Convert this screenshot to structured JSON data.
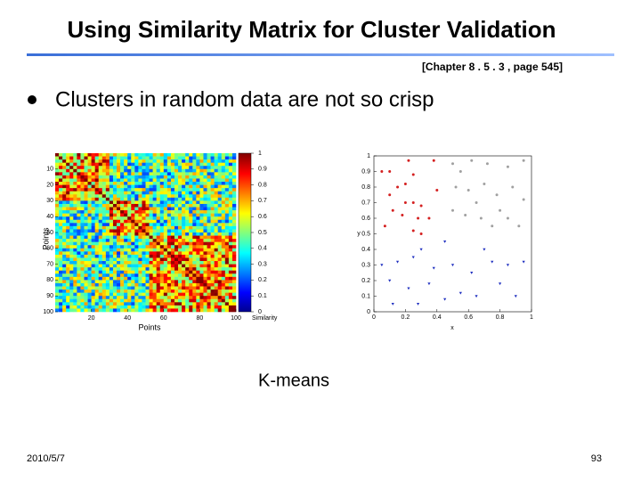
{
  "header": {
    "title": "Using Similarity Matrix for Cluster Validation",
    "reference": "[Chapter 8 . 5 . 3 ,  page 545]"
  },
  "bullet": "Clusters in random data are not so crisp",
  "similarity_matrix": {
    "x_label": "Points",
    "y_label": "Points",
    "xlim": [
      0,
      100
    ],
    "ylim": [
      0,
      100
    ],
    "xticks": [
      20,
      40,
      60,
      80,
      100
    ],
    "yticks": [
      10,
      20,
      30,
      40,
      50,
      60,
      70,
      80,
      90,
      100
    ],
    "colorbar_label": "Similarity",
    "colorbar_lim": [
      0,
      1
    ],
    "colorbar_ticks": [
      0,
      0.1,
      0.2,
      0.3,
      0.4,
      0.5,
      0.6,
      0.7,
      0.8,
      0.9,
      1
    ]
  },
  "chart_data": {
    "type": "scatter",
    "x_label": "x",
    "y_label": "y",
    "xlim": [
      0,
      1
    ],
    "ylim": [
      0,
      1
    ],
    "xticks": [
      0,
      0.2,
      0.4,
      0.6,
      0.8,
      1
    ],
    "yticks": [
      0,
      0.1,
      0.2,
      0.3,
      0.4,
      0.5,
      0.6,
      0.7,
      0.8,
      0.9,
      1
    ],
    "series": [
      {
        "color": "#d42020",
        "marker": "circle",
        "x": [
          0.05,
          0.1,
          0.22,
          0.38,
          0.25,
          0.2,
          0.15,
          0.1,
          0.2,
          0.25,
          0.3,
          0.12,
          0.18,
          0.28,
          0.35,
          0.07,
          0.3,
          0.25,
          0.4
        ],
        "values": [
          0.9,
          0.9,
          0.97,
          0.97,
          0.88,
          0.82,
          0.8,
          0.75,
          0.7,
          0.7,
          0.68,
          0.65,
          0.62,
          0.6,
          0.6,
          0.55,
          0.5,
          0.52,
          0.78
        ]
      },
      {
        "color": "#2030c0",
        "marker": "triangle",
        "x": [
          0.05,
          0.15,
          0.25,
          0.3,
          0.45,
          0.38,
          0.5,
          0.62,
          0.75,
          0.85,
          0.95,
          0.1,
          0.22,
          0.35,
          0.55,
          0.65,
          0.8,
          0.9,
          0.45,
          0.28,
          0.12,
          0.7
        ],
        "values": [
          0.3,
          0.32,
          0.35,
          0.4,
          0.45,
          0.28,
          0.3,
          0.25,
          0.32,
          0.3,
          0.32,
          0.2,
          0.15,
          0.18,
          0.12,
          0.1,
          0.18,
          0.1,
          0.08,
          0.05,
          0.05,
          0.4
        ]
      },
      {
        "color": "#a0a0a0",
        "marker": "circle",
        "x": [
          0.5,
          0.55,
          0.62,
          0.72,
          0.85,
          0.95,
          0.52,
          0.6,
          0.7,
          0.78,
          0.88,
          0.95,
          0.5,
          0.58,
          0.68,
          0.75,
          0.85,
          0.92,
          0.65,
          0.8
        ],
        "values": [
          0.95,
          0.9,
          0.97,
          0.95,
          0.93,
          0.97,
          0.8,
          0.78,
          0.82,
          0.75,
          0.8,
          0.72,
          0.65,
          0.62,
          0.6,
          0.55,
          0.6,
          0.55,
          0.7,
          0.65
        ]
      }
    ]
  },
  "caption": "K-means",
  "footer": {
    "date": "2010/5/7",
    "page": "93"
  }
}
